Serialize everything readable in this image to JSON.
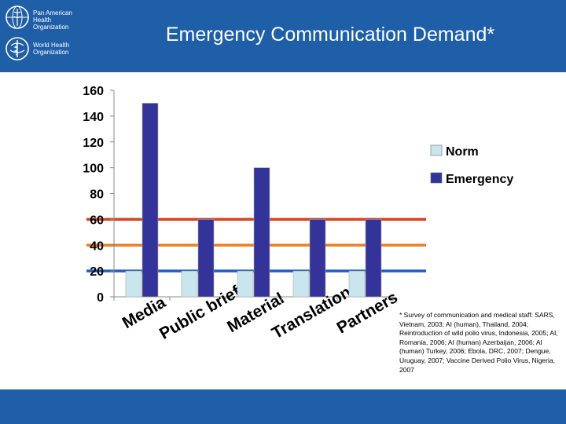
{
  "header": {
    "title": "Emergency Communication Demand*",
    "org1": "Pan American Health Organization",
    "org2": "World Health Organization",
    "logo1_icon": "paho-globe-icon",
    "logo2_icon": "who-emblem-icon",
    "background": "#1f5fa8"
  },
  "footnote": "* Survey of communication and medical staff: SARS, Vietnam, 2003; AI (human), Thailand, 2004; Reintroduction of wild polio virus, Indonesia, 2005; AI, Romania, 2006; AI (human) Azerbaijan, 2006; AI (human) Turkey, 2006; Ebola, DRC, 2007; Dengue, Uruguay, 2007; Vaccine Derived Polio Virus, Nigeria, 2007",
  "chart_data": {
    "type": "bar",
    "categories": [
      "Media",
      "Public brief",
      "Material",
      "Translation",
      "Partners"
    ],
    "series": [
      {
        "name": "Norm",
        "values": [
          20,
          20,
          20,
          20,
          20
        ],
        "color": "#c9e6ee"
      },
      {
        "name": "Emergency",
        "values": [
          150,
          60,
          100,
          60,
          60
        ],
        "color": "#33339a"
      }
    ],
    "yticks": [
      "0",
      "20",
      "40",
      "60",
      "80",
      "100",
      "120",
      "140",
      "160"
    ],
    "ylim": [
      0,
      160
    ],
    "reference_lines": [
      {
        "value": 60,
        "color": "#d9401a"
      },
      {
        "value": 40,
        "color": "#ef7d22"
      },
      {
        "value": 20,
        "color": "#1f5fc4"
      }
    ],
    "grid": false,
    "legend_position": "right"
  }
}
